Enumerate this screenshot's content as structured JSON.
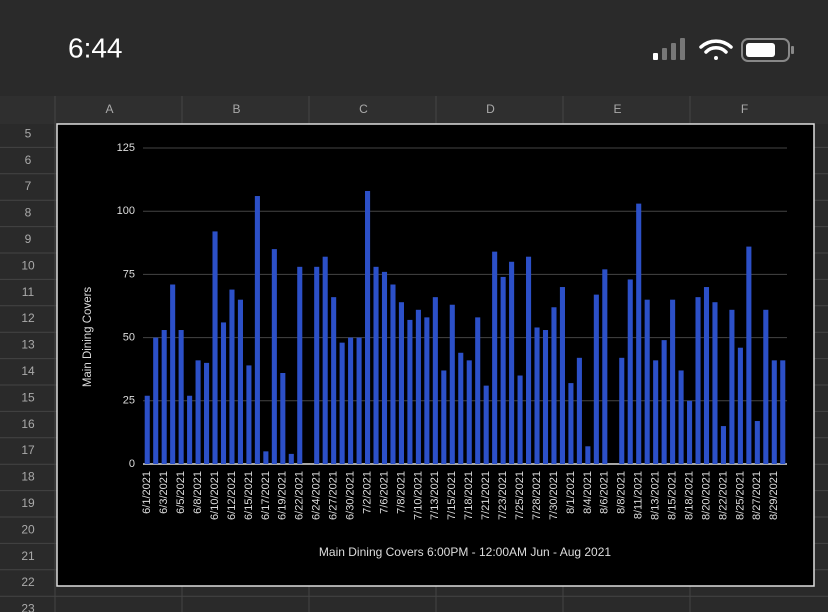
{
  "status_bar": {
    "time": "6:44"
  },
  "sheet": {
    "columns": [
      "A",
      "B",
      "C",
      "D",
      "E",
      "F"
    ],
    "rows": [
      5,
      6,
      7,
      8,
      9,
      10,
      11,
      12,
      13,
      14,
      15,
      16,
      17,
      18,
      19,
      20,
      21,
      22,
      23
    ]
  },
  "chart_data": {
    "type": "bar",
    "x_label": "Main Dining Covers 6:00PM - 12:00AM Jun - Aug 2021",
    "y_label": "Main Dining Covers",
    "color": "#2c50c8",
    "grid": true,
    "ylim": [
      0,
      125
    ],
    "yticks": [
      0,
      25,
      50,
      75,
      100,
      125
    ],
    "categories": [
      "6/1/2021",
      null,
      "6/3/2021",
      null,
      "6/5/2021",
      null,
      "6/8/2021",
      null,
      "6/10/2021",
      null,
      "6/12/2021",
      null,
      "6/15/2021",
      null,
      "6/17/2021",
      null,
      "6/19/2021",
      null,
      "6/22/2021",
      null,
      "6/24/2021",
      null,
      "6/27/2021",
      null,
      "6/30/2021",
      null,
      "7/2/2021",
      null,
      "7/6/2021",
      null,
      "7/8/2021",
      null,
      "7/10/2021",
      null,
      "7/13/2021",
      null,
      "7/15/2021",
      null,
      "7/18/2021",
      null,
      "7/21/2021",
      null,
      "7/23/2021",
      null,
      "7/25/2021",
      null,
      "7/28/2021",
      null,
      "7/30/2021",
      null,
      "8/1/2021",
      null,
      "8/4/2021",
      null,
      "8/6/2021",
      null,
      "8/8/2021",
      null,
      "8/11/2021",
      null,
      "8/13/2021",
      null,
      "8/15/2021",
      null,
      "8/18/2021",
      null,
      "8/20/2021",
      null,
      "8/22/2021",
      null,
      "8/25/2021",
      null,
      "8/27/2021",
      null,
      "8/29/2021",
      null
    ],
    "values": [
      27,
      50,
      53,
      71,
      53,
      27,
      41,
      40,
      92,
      56,
      69,
      65,
      39,
      106,
      5,
      85,
      36,
      4,
      78,
      0,
      78,
      82,
      66,
      48,
      50,
      50,
      108,
      78,
      76,
      71,
      64,
      57,
      61,
      58,
      66,
      37,
      63,
      44,
      41,
      58,
      31,
      84,
      74,
      80,
      35,
      82,
      54,
      53,
      62,
      70,
      32,
      42,
      7,
      67,
      77,
      0,
      42,
      73,
      103,
      65,
      41,
      49,
      65,
      37,
      25,
      66,
      70,
      64,
      15,
      61,
      46,
      86,
      17,
      61,
      41,
      41
    ]
  }
}
